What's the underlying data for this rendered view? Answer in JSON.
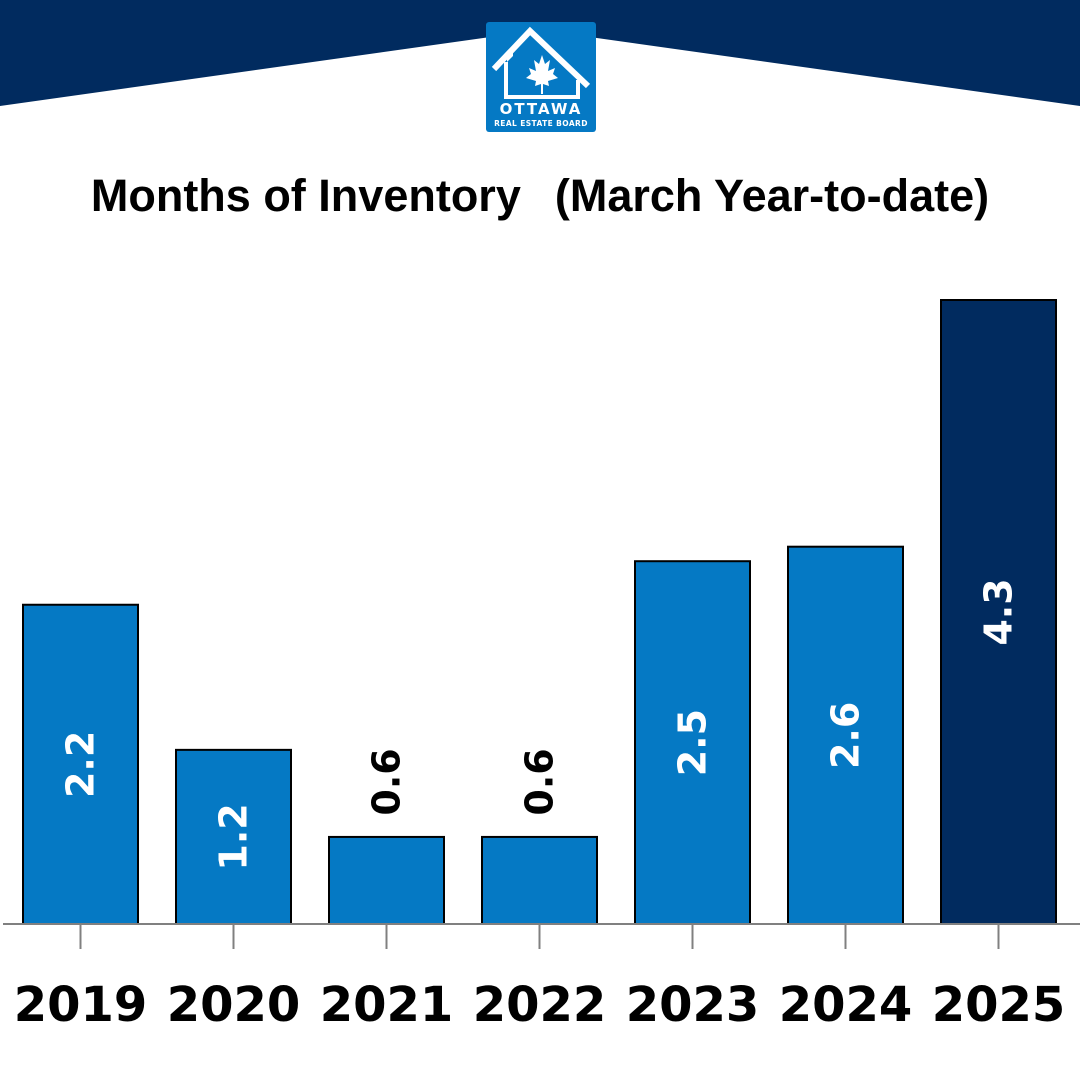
{
  "logo": {
    "name": "OTTAWA",
    "subtitle": "REAL ESTATE BOARD"
  },
  "colors": {
    "banner": "#012b5f",
    "bar": "#0579c4",
    "bar_highlight": "#012b5f",
    "axis": "#808080"
  },
  "chart_data": {
    "type": "bar",
    "title": "Months of Inventory",
    "subtitle": "(March Year-to-date)",
    "categories": [
      "2019",
      "2020",
      "2021",
      "2022",
      "2023",
      "2024",
      "2025"
    ],
    "values": [
      2.2,
      1.2,
      0.6,
      0.6,
      2.5,
      2.6,
      4.3
    ],
    "value_labels": [
      "2.2",
      "1.2",
      "0.6",
      "0.6",
      "2.5",
      "2.6",
      "4.3"
    ],
    "highlight_category": "2025",
    "xlabel": "",
    "ylabel": "",
    "ylim": [
      0,
      4.3
    ],
    "grid": false,
    "legend": "none"
  }
}
